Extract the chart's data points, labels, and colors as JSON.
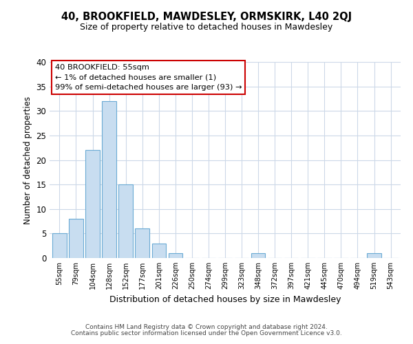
{
  "title": "40, BROOKFIELD, MAWDESLEY, ORMSKIRK, L40 2QJ",
  "subtitle": "Size of property relative to detached houses in Mawdesley",
  "xlabel": "Distribution of detached houses by size in Mawdesley",
  "ylabel": "Number of detached properties",
  "categories": [
    "55sqm",
    "79sqm",
    "104sqm",
    "128sqm",
    "152sqm",
    "177sqm",
    "201sqm",
    "226sqm",
    "250sqm",
    "274sqm",
    "299sqm",
    "323sqm",
    "348sqm",
    "372sqm",
    "397sqm",
    "421sqm",
    "445sqm",
    "470sqm",
    "494sqm",
    "519sqm",
    "543sqm"
  ],
  "values": [
    5,
    8,
    22,
    32,
    15,
    6,
    3,
    1,
    0,
    0,
    0,
    0,
    1,
    0,
    0,
    0,
    0,
    0,
    0,
    1,
    0
  ],
  "bar_color": "#c8ddf0",
  "bar_edge_color": "#6aaad4",
  "ylim": [
    0,
    40
  ],
  "yticks": [
    0,
    5,
    10,
    15,
    20,
    25,
    30,
    35,
    40
  ],
  "annotation_title": "40 BROOKFIELD: 55sqm",
  "annotation_line1": "← 1% of detached houses are smaller (1)",
  "annotation_line2": "99% of semi-detached houses are larger (93) →",
  "annotation_box_color": "#ffffff",
  "annotation_box_edge": "#cc0000",
  "footer_line1": "Contains HM Land Registry data © Crown copyright and database right 2024.",
  "footer_line2": "Contains public sector information licensed under the Open Government Licence v3.0.",
  "bg_color": "#ffffff",
  "grid_color": "#ccd8e8"
}
